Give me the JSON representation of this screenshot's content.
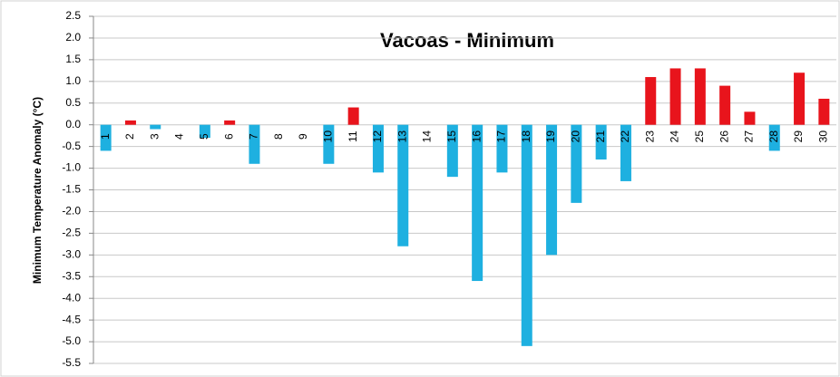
{
  "chart_data": {
    "type": "bar",
    "title": "Vacoas - Minimum",
    "y_label": "Minimum Temperature Anomaly (°C)",
    "categories": [
      "1",
      "2",
      "3",
      "4",
      "5",
      "6",
      "7",
      "8",
      "9",
      "10",
      "11",
      "12",
      "13",
      "14",
      "15",
      "16",
      "17",
      "18",
      "19",
      "20",
      "21",
      "22",
      "23",
      "24",
      "25",
      "26",
      "27",
      "28",
      "29",
      "30"
    ],
    "values": [
      -0.6,
      0.1,
      -0.1,
      0,
      -0.3,
      0.1,
      -0.9,
      0,
      0,
      -0.9,
      0.4,
      -1.1,
      -2.8,
      0,
      -1.2,
      -3.6,
      -1.1,
      -5.1,
      -3.0,
      -1.8,
      -0.8,
      -1.3,
      1.1,
      1.3,
      1.3,
      0.9,
      0.3,
      -0.6,
      1.2,
      0.6
    ],
    "positive_color": "#e8141c",
    "negative_color": "#1eb0e0",
    "ylim": [
      -5.5,
      2.5
    ],
    "yticks": [
      2.5,
      {
        "value": 2,
        "label": "2.0"
      },
      1.5,
      {
        "value": 1,
        "label": "1.0"
      },
      0.5,
      {
        "value": 0,
        "label": "0.0"
      },
      -0.5,
      {
        "value": -1,
        "label": "-1.0"
      },
      -1.5,
      {
        "value": -2,
        "label": "-2.0"
      },
      -2.5,
      {
        "value": -3,
        "label": "-3.0"
      },
      -3.5,
      {
        "value": -4,
        "label": "-4.0"
      },
      -4.5,
      {
        "value": -5,
        "label": "-5.0"
      },
      -5.5
    ],
    "grid": true
  }
}
